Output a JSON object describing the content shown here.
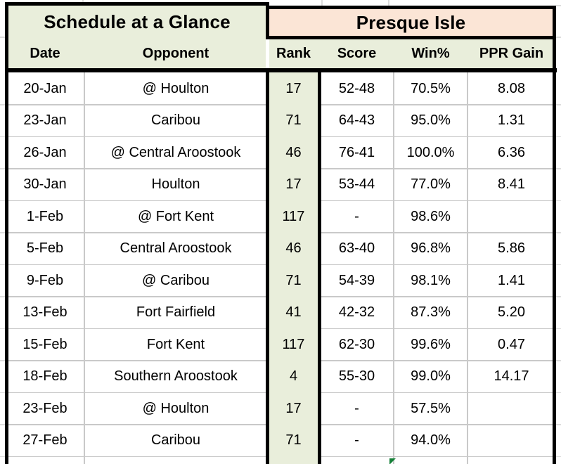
{
  "titles": {
    "left": "Schedule at a Glance",
    "right": "Presque Isle"
  },
  "columns": {
    "date": "Date",
    "opponent": "Opponent",
    "rank": "Rank",
    "score": "Score",
    "win": "Win%",
    "ppr": "PPR Gain"
  },
  "rows": [
    {
      "date": "20-Jan",
      "opponent": "@ Houlton",
      "rank": "17",
      "score": "52-48",
      "win": "70.5%",
      "ppr": "8.08"
    },
    {
      "date": "23-Jan",
      "opponent": "Caribou",
      "rank": "71",
      "score": "64-43",
      "win": "95.0%",
      "ppr": "1.31"
    },
    {
      "date": "26-Jan",
      "opponent": "@ Central Aroostook",
      "rank": "46",
      "score": "76-41",
      "win": "100.0%",
      "ppr": "6.36"
    },
    {
      "date": "30-Jan",
      "opponent": "Houlton",
      "rank": "17",
      "score": "53-44",
      "win": "77.0%",
      "ppr": "8.41"
    },
    {
      "date": "1-Feb",
      "opponent": "@ Fort Kent",
      "rank": "117",
      "score": "-",
      "win": "98.6%",
      "ppr": ""
    },
    {
      "date": "5-Feb",
      "opponent": "Central Aroostook",
      "rank": "46",
      "score": "63-40",
      "win": "96.8%",
      "ppr": "5.86"
    },
    {
      "date": "9-Feb",
      "opponent": "@ Caribou",
      "rank": "71",
      "score": "54-39",
      "win": "98.1%",
      "ppr": "1.41"
    },
    {
      "date": "13-Feb",
      "opponent": "Fort Fairfield",
      "rank": "41",
      "score": "42-32",
      "win": "87.3%",
      "ppr": "5.20"
    },
    {
      "date": "15-Feb",
      "opponent": "Fort Kent",
      "rank": "117",
      "score": "62-30",
      "win": "99.6%",
      "ppr": "0.47"
    },
    {
      "date": "18-Feb",
      "opponent": "Southern Aroostook",
      "rank": "4",
      "score": "55-30",
      "win": "99.0%",
      "ppr": "14.17"
    },
    {
      "date": "23-Feb",
      "opponent": "@ Houlton",
      "rank": "17",
      "score": "-",
      "win": "57.5%",
      "ppr": ""
    },
    {
      "date": "27-Feb",
      "opponent": "Caribou",
      "rank": "71",
      "score": "-",
      "win": "94.0%",
      "ppr": ""
    }
  ],
  "colors": {
    "header_green": "#E9EEDB",
    "team_peach": "#FBE5D6",
    "border_black": "#000000",
    "gridline_gray": "#C9C9C9",
    "indicator_green": "#158038"
  }
}
